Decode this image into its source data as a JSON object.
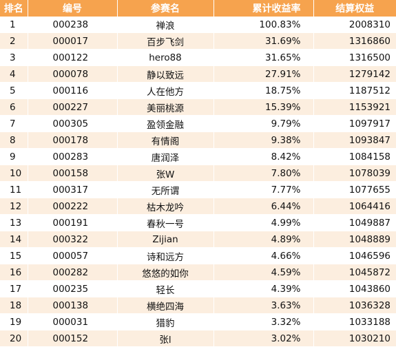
{
  "headers": [
    "排名",
    "编号",
    "参赛名",
    "累计收益率",
    "结算权益"
  ],
  "rows": [
    {
      "rank": "1",
      "id": "000238",
      "name": "禅浪",
      "return": "100.83%",
      "equity": "2008310"
    },
    {
      "rank": "2",
      "id": "000017",
      "name": "百步飞剑",
      "return": "31.69%",
      "equity": "1316860"
    },
    {
      "rank": "3",
      "id": "000122",
      "name": "hero88",
      "return": "31.65%",
      "equity": "1316500"
    },
    {
      "rank": "4",
      "id": "000078",
      "name": "静以致远",
      "return": "27.91%",
      "equity": "1279142"
    },
    {
      "rank": "5",
      "id": "000116",
      "name": "人在他方",
      "return": "18.75%",
      "equity": "1187512"
    },
    {
      "rank": "6",
      "id": "000227",
      "name": "美丽桃源",
      "return": "15.39%",
      "equity": "1153921"
    },
    {
      "rank": "7",
      "id": "000305",
      "name": "盈领金融",
      "return": "9.79%",
      "equity": "1097917"
    },
    {
      "rank": "8",
      "id": "000178",
      "name": "有情阁",
      "return": "9.38%",
      "equity": "1093847"
    },
    {
      "rank": "9",
      "id": "000283",
      "name": "唐润泽",
      "return": "8.42%",
      "equity": "1084158"
    },
    {
      "rank": "10",
      "id": "000158",
      "name": "张W",
      "return": "7.80%",
      "equity": "1078039"
    },
    {
      "rank": "11",
      "id": "000317",
      "name": "无所谓",
      "return": "7.77%",
      "equity": "1077655"
    },
    {
      "rank": "12",
      "id": "000222",
      "name": "枯木龙吟",
      "return": "6.44%",
      "equity": "1064416"
    },
    {
      "rank": "13",
      "id": "000191",
      "name": "春秋一号",
      "return": "4.99%",
      "equity": "1049887"
    },
    {
      "rank": "14",
      "id": "000322",
      "name": "Zijian",
      "return": "4.89%",
      "equity": "1048889"
    },
    {
      "rank": "15",
      "id": "000057",
      "name": "诗和远方",
      "return": "4.66%",
      "equity": "1046596"
    },
    {
      "rank": "16",
      "id": "000282",
      "name": "悠悠的如你",
      "return": "4.59%",
      "equity": "1045872"
    },
    {
      "rank": "17",
      "id": "000235",
      "name": "轻长",
      "return": "4.39%",
      "equity": "1043860"
    },
    {
      "rank": "18",
      "id": "000138",
      "name": "横绝四海",
      "return": "3.63%",
      "equity": "1036328"
    },
    {
      "rank": "19",
      "id": "000031",
      "name": "猎豹",
      "return": "3.32%",
      "equity": "1033188"
    },
    {
      "rank": "20",
      "id": "000152",
      "name": "张l",
      "return": "3.02%",
      "equity": "1030210"
    }
  ],
  "colors": {
    "header_bg": "#F6A34E",
    "header_text": "#FFFFFF",
    "stripe": "#FCEEDF"
  }
}
